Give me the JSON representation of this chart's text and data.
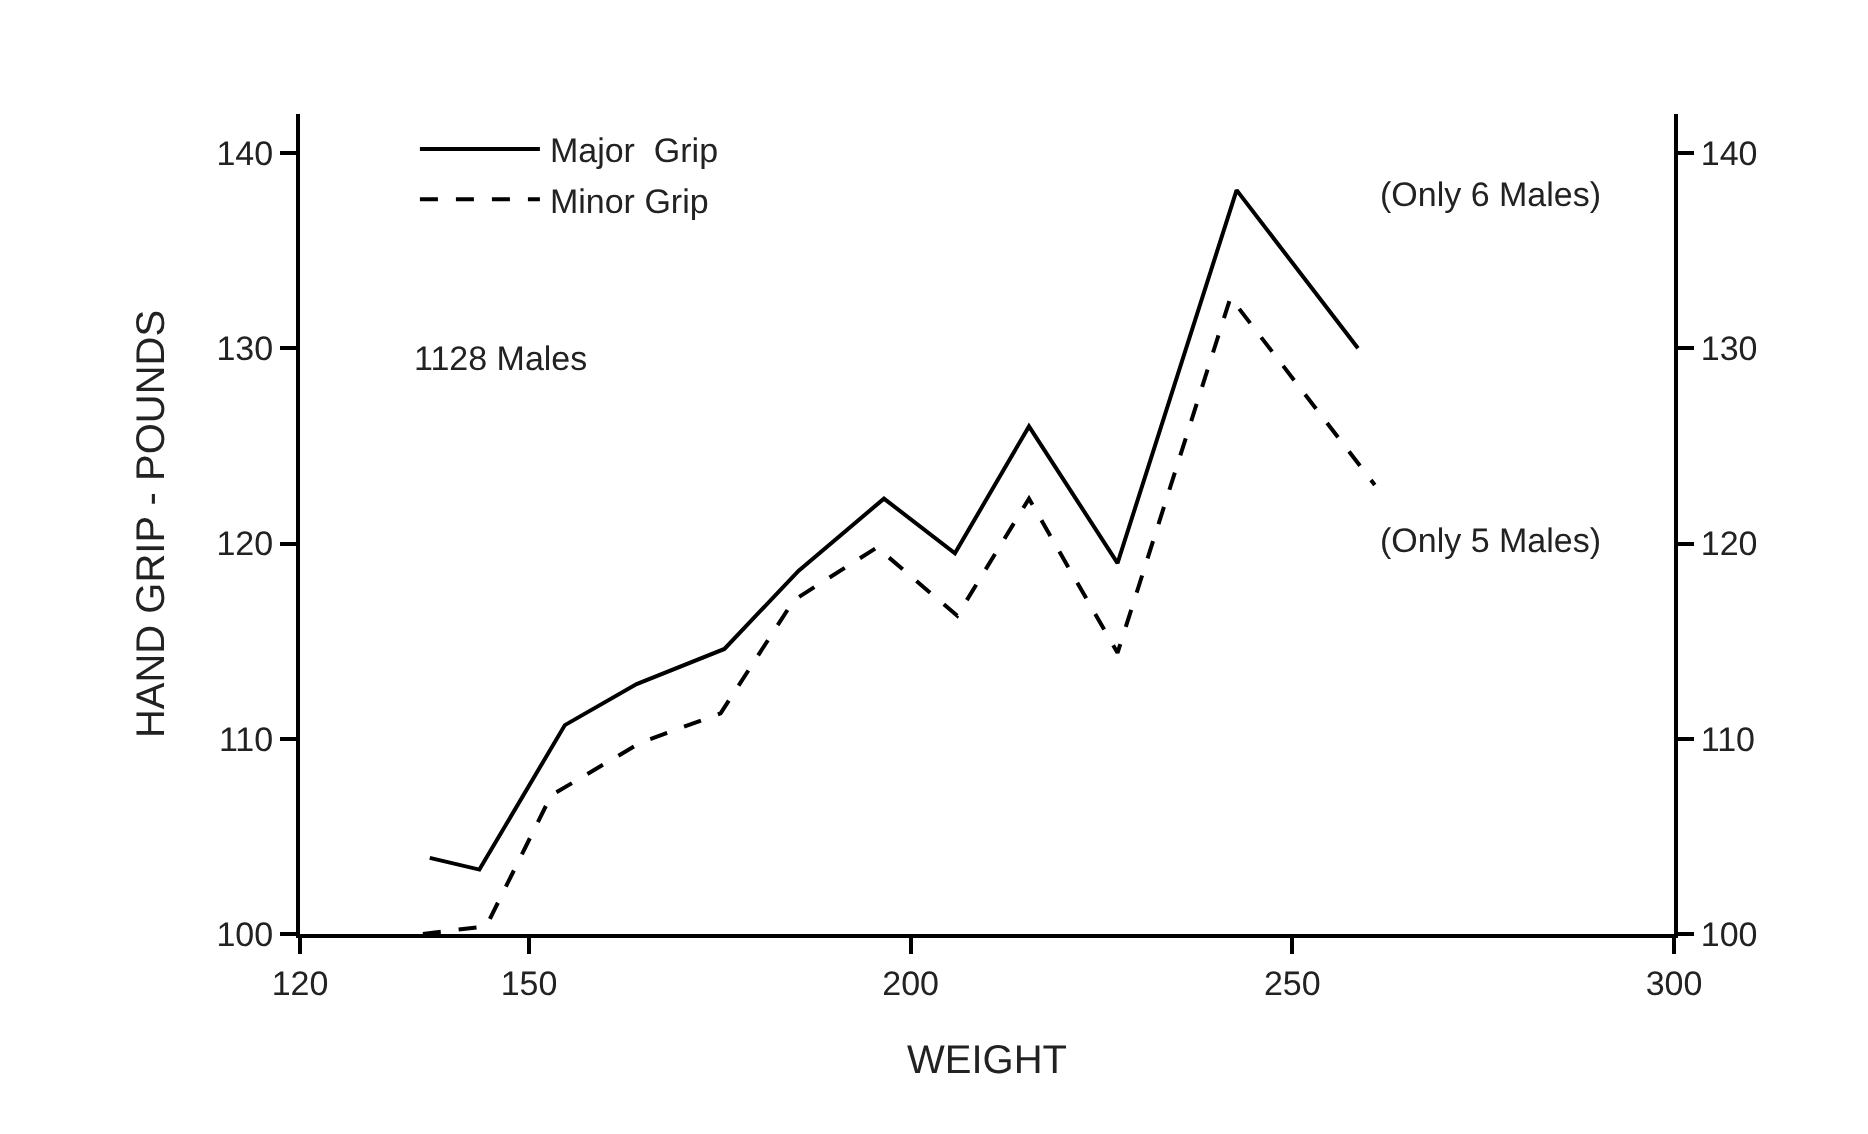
{
  "chart_data": {
    "type": "line",
    "xlabel": "WEIGHT",
    "ylabel": "HAND GRIP - POUNDS",
    "xlim": [
      120,
      300
    ],
    "xticks": [
      120,
      150,
      200,
      250,
      300
    ],
    "ylim": [
      100,
      142
    ],
    "yticks": [
      100,
      110,
      120,
      130,
      140
    ],
    "y2lim": [
      100,
      142
    ],
    "y2ticks": [
      100,
      110,
      120,
      130,
      140
    ],
    "grid": false,
    "legend": "top left",
    "marker": "none",
    "annotations": [
      "1128 Males",
      "(Only 6 Males)",
      "(Only 5 Males)"
    ],
    "series": [
      {
        "name": "Major  Grip",
        "color": "#000000",
        "line_style": "solid",
        "x": [
          137.0,
          143.5,
          154.7,
          164.1,
          175.6,
          185.3,
          196.5,
          205.8,
          215.5,
          227.1,
          242.7,
          258.6
        ],
        "values": [
          103.9,
          103.3,
          110.7,
          112.8,
          114.6,
          118.6,
          122.3,
          119.5,
          126.0,
          119.0,
          138.1,
          130.0
        ]
      },
      {
        "name": "Minor Grip",
        "color": "#000000",
        "line_style": "dashed",
        "x": [
          136.1,
          144.4,
          152.9,
          164.6,
          175.1,
          184.7,
          195.6,
          206.1,
          215.5,
          227.1,
          241.9,
          260.8
        ],
        "values": [
          100.0,
          100.4,
          107.1,
          109.8,
          111.3,
          117.1,
          119.8,
          116.3,
          122.3,
          114.4,
          132.6,
          123.0
        ]
      }
    ]
  }
}
